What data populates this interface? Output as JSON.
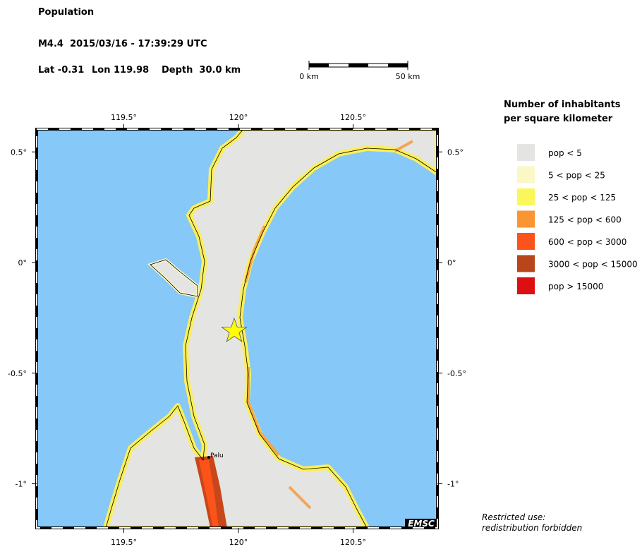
{
  "header": {
    "title": "Population",
    "event": "M4.4  2015/03/16 - 17:39:29 UTC",
    "lat": "Lat -0.31",
    "lon": "Lon 119.98",
    "depth": "Depth  30.0 km"
  },
  "scale_bar": {
    "start": "0 km",
    "end": "50 km"
  },
  "map": {
    "lon_ticks": [
      {
        "value": 119.5,
        "label": "119.5°"
      },
      {
        "value": 120,
        "label": "120°"
      },
      {
        "value": 120.5,
        "label": "120.5°"
      }
    ],
    "lat_ticks": [
      {
        "value": 0.5,
        "label": "0.5°"
      },
      {
        "value": 0,
        "label": "0°"
      },
      {
        "value": -0.5,
        "label": "-0.5°"
      },
      {
        "value": -1,
        "label": "-1°"
      }
    ],
    "city": "Palu",
    "logo": "EMSC"
  },
  "legend": {
    "title": [
      "Number of inhabitants",
      "per square kilometer"
    ],
    "items": [
      {
        "label": "pop < 5",
        "color": "#e4e4e2"
      },
      {
        "label": "5 < pop < 25",
        "color": "#fbf7c6"
      },
      {
        "label": "25 < pop < 125",
        "color": "#fbf75a"
      },
      {
        "label": "125 < pop < 600",
        "color": "#f99532"
      },
      {
        "label": "600 < pop < 3000",
        "color": "#fc531a"
      },
      {
        "label": "3000 < pop < 15000",
        "color": "#b8461a"
      },
      {
        "label": "pop > 15000",
        "color": "#dc1010"
      }
    ]
  },
  "notice": [
    "Restricted use:",
    "redistribution forbidden"
  ]
}
